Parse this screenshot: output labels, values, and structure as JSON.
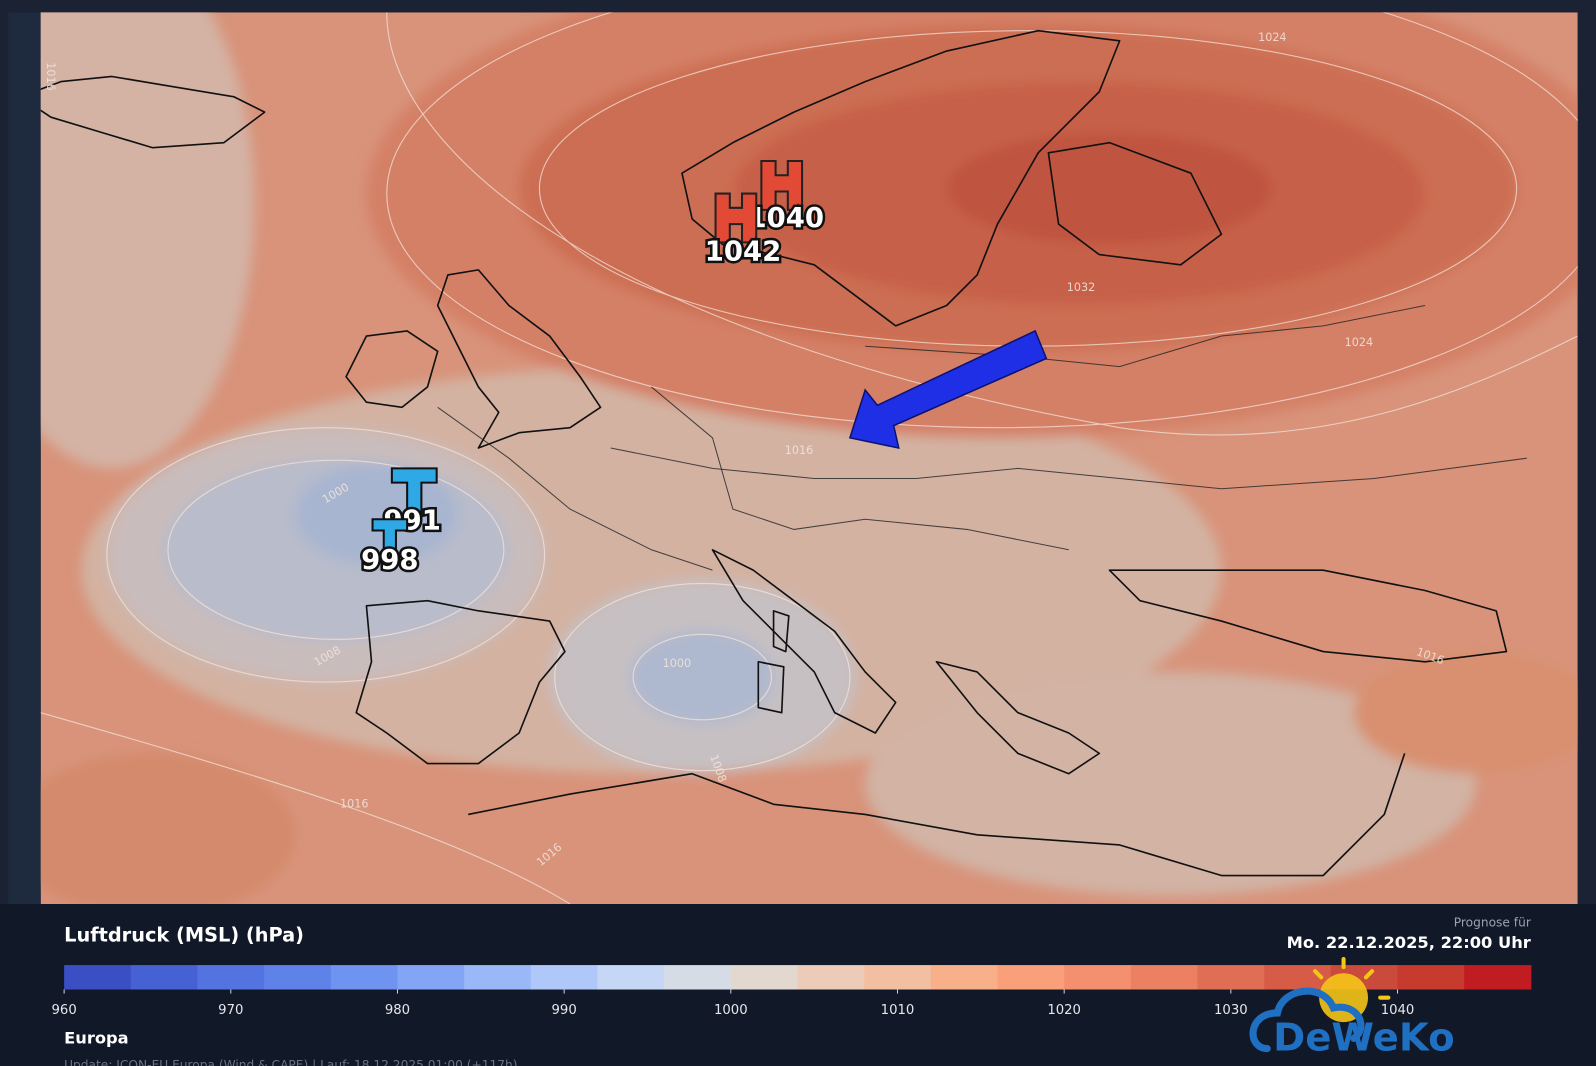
{
  "map": {
    "pressure_centers": [
      {
        "symbol": "H",
        "value": 1040
      },
      {
        "symbol": "H",
        "value": 1042
      },
      {
        "symbol": "T",
        "value": 991
      },
      {
        "symbol": "T",
        "value": 998
      }
    ],
    "isobar_labels": [
      1024,
      1032,
      1024,
      1016,
      1000,
      1008,
      1000,
      1008,
      1016,
      1016,
      1016,
      1016
    ]
  },
  "panel": {
    "title": "Luftdruck (MSL) (hPa)",
    "forecast_label": "Prognose für",
    "forecast_time": "Mo. 22.12.2025, 22:00 Uhr",
    "region": "Europa",
    "update": "Update: ICON-EU Europa (Wind & CAPE) | Lauf: 18.12.2025 01:00 (+117h)",
    "logo": "DeWeKo"
  },
  "colorbar": {
    "range": [
      960,
      1048
    ],
    "ticks": [
      960,
      970,
      980,
      990,
      1000,
      1010,
      1020,
      1030,
      1040
    ],
    "colors": [
      "#3a4fc4",
      "#4561d4",
      "#5273e0",
      "#5f82e8",
      "#6e93f0",
      "#84a5f5",
      "#9ab7f8",
      "#b0c8f9",
      "#c6d6f5",
      "#d6dce6",
      "#e2d8d0",
      "#eccbb9",
      "#f3bfa2",
      "#f8b08a",
      "#f9a07a",
      "#f49070",
      "#ec8063",
      "#e06e55",
      "#d65c48",
      "#ca4a3b",
      "#c73a2e",
      "#c01c22"
    ]
  }
}
